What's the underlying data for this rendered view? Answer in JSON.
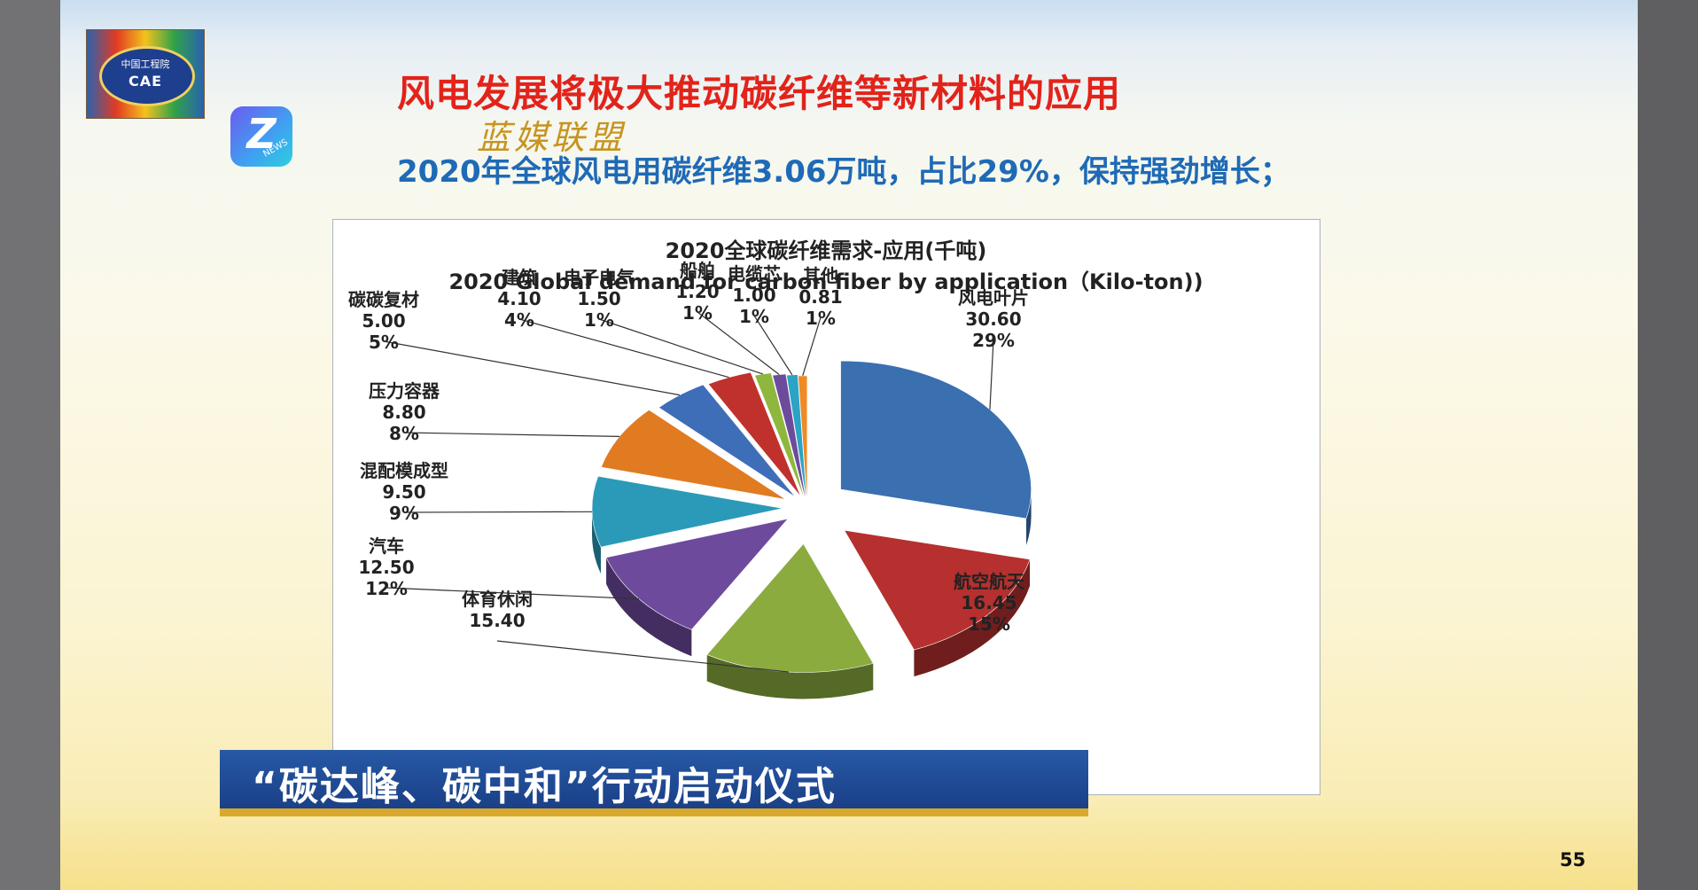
{
  "slide": {
    "title": "风电发展将极大推动碳纤维等新材料的应用",
    "watermark": "蓝媒联盟",
    "subtitle": "2020年全球风电用碳纤维3.06万吨，占比29%，保持强劲增长；",
    "page_number": "55",
    "logo_cae_text": "CAE",
    "logo_cae_cn": "中国工程院",
    "logo_news_text": "NEWS",
    "ticker_text": "“碳达峰、碳中和”行动启动仪式"
  },
  "chart_data": {
    "type": "pie",
    "title_cn": "2020全球碳纤维需求-应用(千吨)",
    "title_en": "2020 Global demand for carbon fiber by application（Kilo-ton))",
    "style": "3d-exploded",
    "slices": [
      {
        "label": "风电叶片",
        "value": 30.6,
        "value_label": "30.60",
        "percent": "29%",
        "color": "#3a6fb0"
      },
      {
        "label": "航空航天",
        "value": 16.45,
        "value_label": "16.45",
        "percent": "15%",
        "color": "#b5302e"
      },
      {
        "label": "体育休闲",
        "value": 15.4,
        "value_label": "15.40",
        "percent": "",
        "color": "#8bab3f"
      },
      {
        "label": "汽车",
        "value": 12.5,
        "value_label": "12.50",
        "percent": "12%",
        "color": "#6e4a9c"
      },
      {
        "label": "混配模成型",
        "value": 9.5,
        "value_label": "9.50",
        "percent": "9%",
        "color": "#2b9ab8"
      },
      {
        "label": "压力容器",
        "value": 8.8,
        "value_label": "8.80",
        "percent": "8%",
        "color": "#e07b22"
      },
      {
        "label": "碳碳复材",
        "value": 5.0,
        "value_label": "5.00",
        "percent": "5%",
        "color": "#3f6eb8"
      },
      {
        "label": "建筑",
        "value": 4.1,
        "value_label": "4.10",
        "percent": "4%",
        "color": "#c0312e"
      },
      {
        "label": "电子电气",
        "value": 1.5,
        "value_label": "1.50",
        "percent": "1%",
        "color": "#8fb73e"
      },
      {
        "label": "船舶",
        "value": 1.2,
        "value_label": "1.20",
        "percent": "1%",
        "color": "#6c4b9d"
      },
      {
        "label": "电缆芯",
        "value": 1.0,
        "value_label": "1.00",
        "percent": "1%",
        "color": "#2ba3c4"
      },
      {
        "label": "其他",
        "value": 0.81,
        "value_label": "0.81",
        "percent": "1%",
        "color": "#ef8a24"
      }
    ]
  }
}
